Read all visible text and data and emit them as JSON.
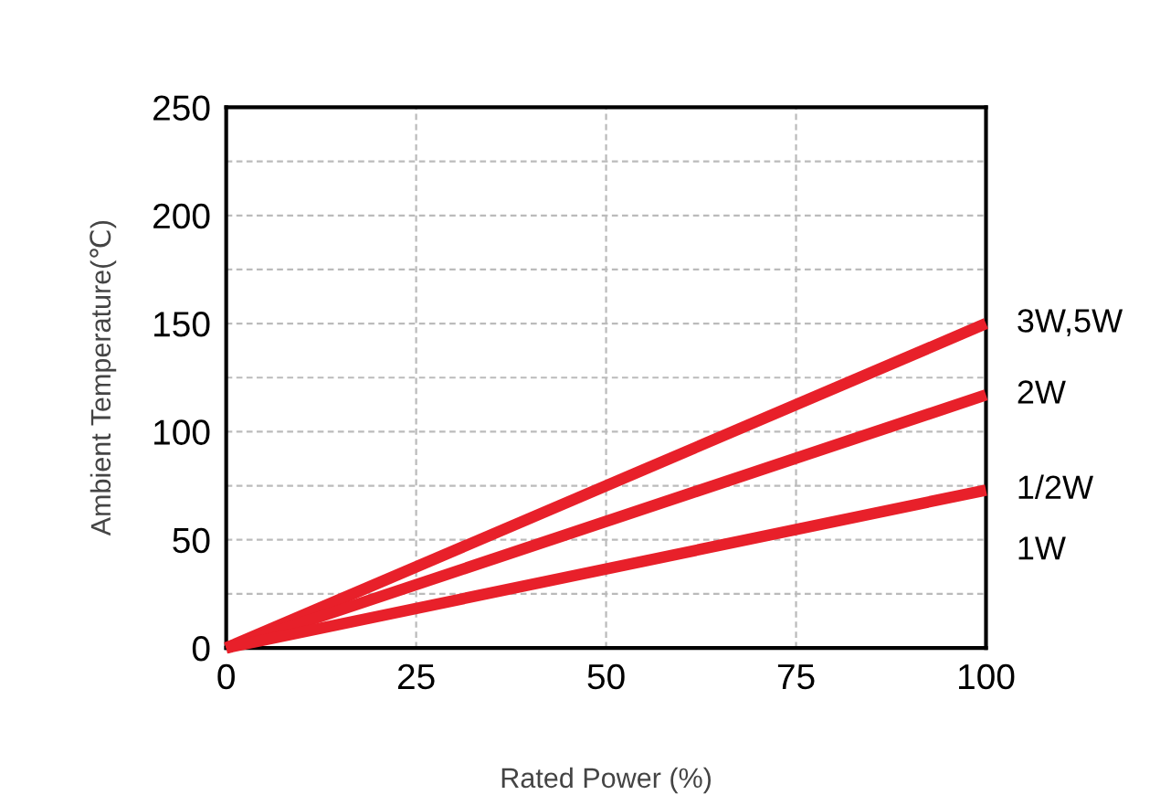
{
  "chart_data": {
    "type": "line",
    "xlabel": "Rated Power (%)",
    "ylabel": "Ambient Temperature(℃)",
    "x": [
      0,
      100
    ],
    "series": [
      {
        "name": "3W,5W",
        "color": "#e8202a",
        "values": [
          0,
          150
        ]
      },
      {
        "name": "2W",
        "color": "#e8202a",
        "values": [
          0,
          117
        ]
      },
      {
        "name": "1/2W",
        "color": "#e8202a",
        "values": [
          0,
          73
        ]
      }
    ],
    "annotations": [
      {
        "text": "1W",
        "x": 100,
        "y": 73
      }
    ],
    "xlim": [
      0,
      100
    ],
    "xticks": [
      0,
      25,
      50,
      75,
      100
    ],
    "ylim": [
      0,
      250
    ],
    "yticks": [
      0,
      {
        "value": 25,
        "label": null
      },
      50,
      {
        "value": 75,
        "label": null
      },
      100,
      {
        "value": 125,
        "label": null
      },
      150,
      {
        "value": 175,
        "label": null
      },
      200,
      {
        "value": 225,
        "label": null
      },
      250
    ],
    "grid": true,
    "legend": false,
    "marker": "none",
    "line_style": "solid"
  }
}
